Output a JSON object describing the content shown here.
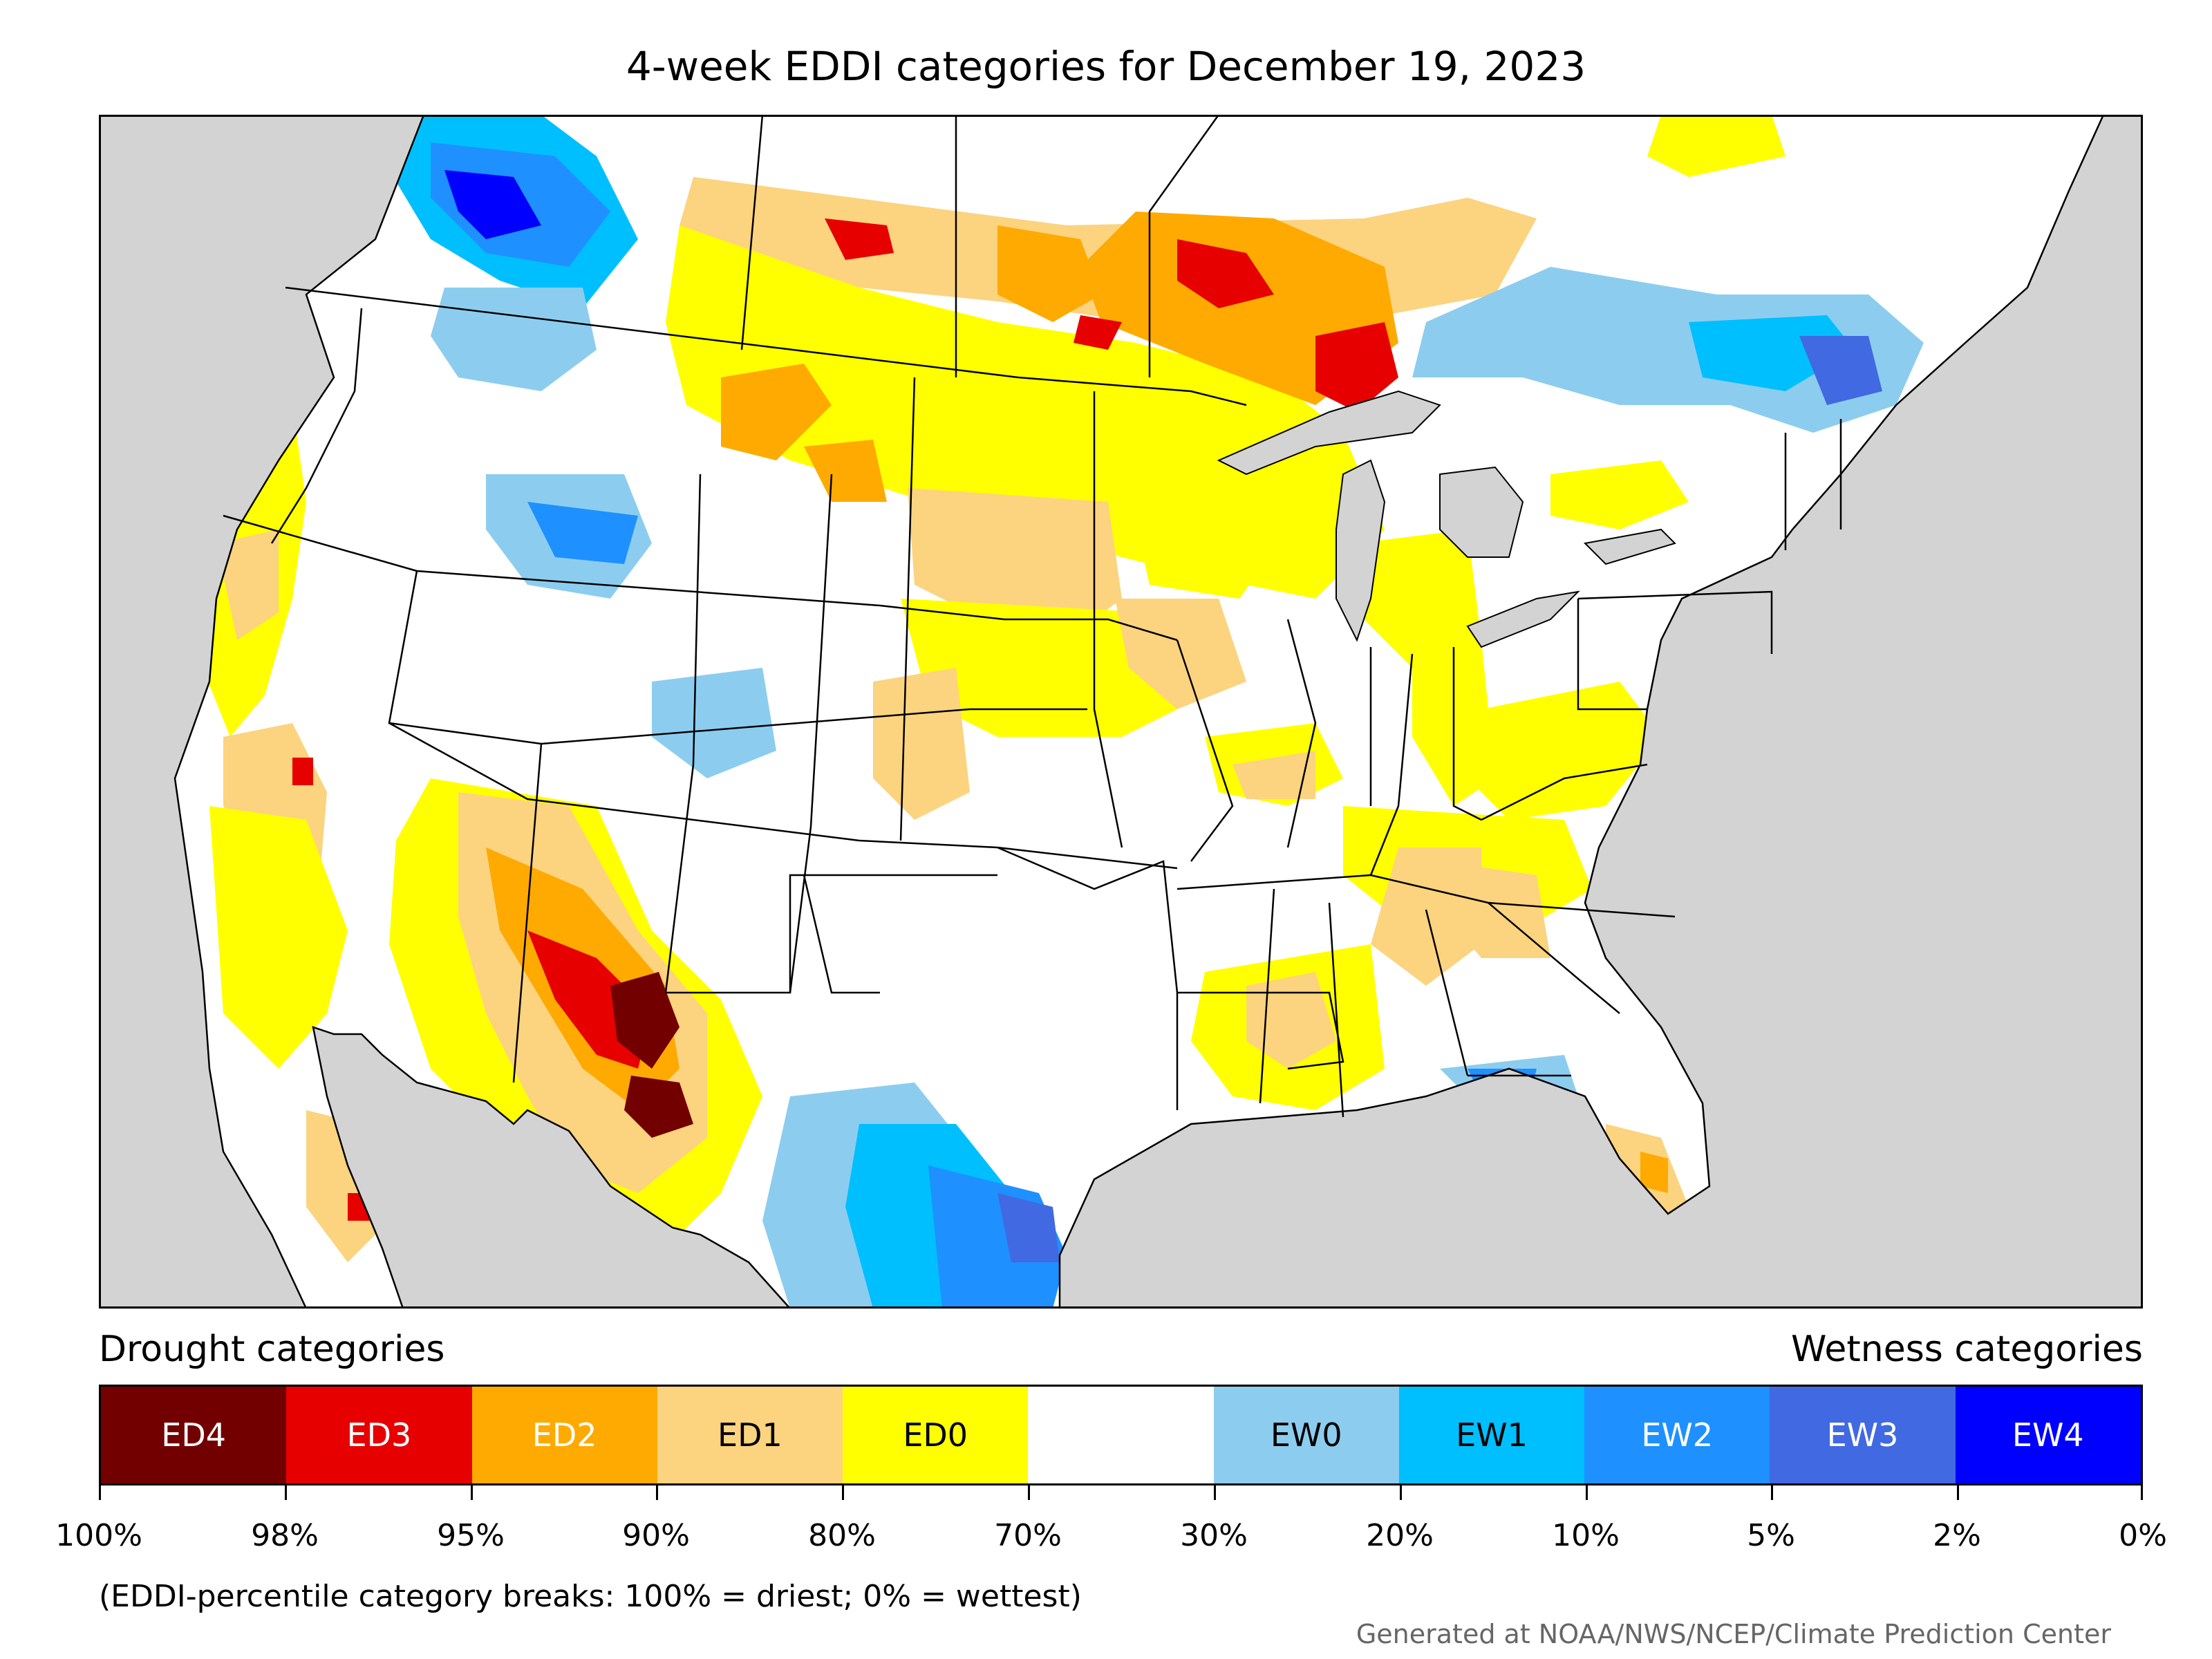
{
  "title": "4-week EDDI categories for December 19, 2023",
  "legend": {
    "drought_heading": "Drought categories",
    "wetness_heading": "Wetness categories",
    "categories": [
      {
        "label": "ED4",
        "color": "#730000",
        "text_color": "#ffffff"
      },
      {
        "label": "ED3",
        "color": "#e60000",
        "text_color": "#ffffff"
      },
      {
        "label": "ED2",
        "color": "#ffaa00",
        "text_color": "#ffffff"
      },
      {
        "label": "ED1",
        "color": "#fcd37f",
        "text_color": "#000000"
      },
      {
        "label": "ED0",
        "color": "#ffff00",
        "text_color": "#000000"
      },
      {
        "label": "",
        "color": "#ffffff",
        "text_color": "#000000"
      },
      {
        "label": "EW0",
        "color": "#8ccdef",
        "text_color": "#000000"
      },
      {
        "label": "EW1",
        "color": "#00bfff",
        "text_color": "#000000"
      },
      {
        "label": "EW2",
        "color": "#1e90ff",
        "text_color": "#ffffff"
      },
      {
        "label": "EW3",
        "color": "#4169e1",
        "text_color": "#ffffff"
      },
      {
        "label": "EW4",
        "color": "#0000ff",
        "text_color": "#ffffff"
      }
    ],
    "breaks": [
      "100%",
      "98%",
      "95%",
      "90%",
      "80%",
      "70%",
      "30%",
      "20%",
      "10%",
      "5%",
      "2%",
      "0%"
    ]
  },
  "note": "(EDDI-percentile category breaks: 100% = driest; 0% = wettest)",
  "credit": "Generated at NOAA/NWS/NCEP/Climate Prediction Center",
  "map": {
    "background_color": "#d3d3d3",
    "land_color": "#ffffff",
    "water_color": "#d3d3d3"
  }
}
